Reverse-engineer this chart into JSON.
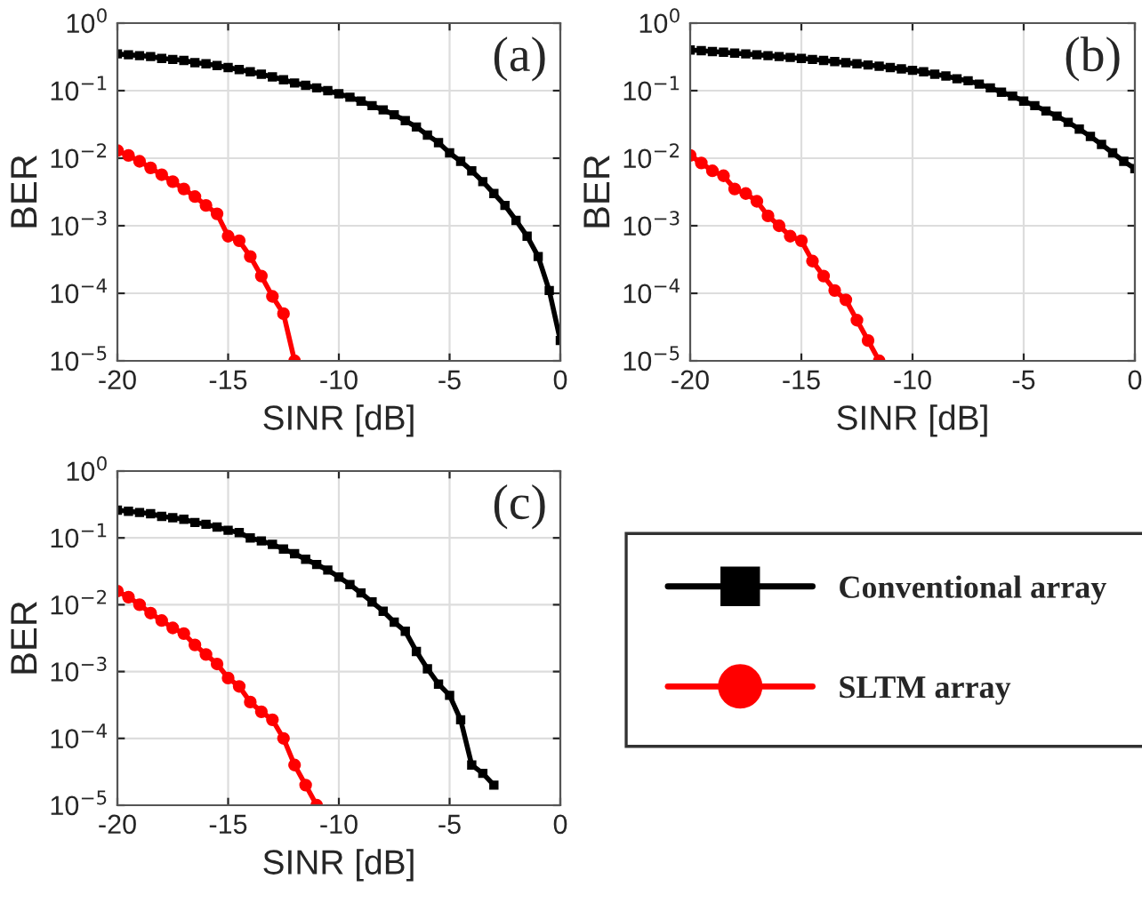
{
  "chart_data": [
    {
      "type": "line",
      "xlabel": "SINR [dB]",
      "ylabel": "BER",
      "annotations": [
        "(a)"
      ],
      "log": "y",
      "grid": true,
      "xlim": [
        -20,
        0
      ],
      "xticks": [
        -20,
        -15,
        -10,
        -5,
        0
      ],
      "ylim": [
        1e-05,
        1
      ],
      "yticks": [
        {
          "value": 1e-05,
          "label": "10$^{−5}$"
        },
        {
          "value": 0.0001,
          "label": "10$^{−4}$"
        },
        {
          "value": 0.001,
          "label": "10$^{−3}$"
        },
        {
          "value": 0.01,
          "label": "10$^{−2}$"
        },
        {
          "value": 0.1,
          "label": "10$^{−1}$"
        },
        {
          "value": 1,
          "label": "10$^{0}$"
        }
      ],
      "series": [
        {
          "color": "#000000",
          "marker": "square",
          "x": [
            -20,
            -19.5,
            -19,
            -18.5,
            -18,
            -17.5,
            -17,
            -16.5,
            -16,
            -15.5,
            -15,
            -14.5,
            -14,
            -13.5,
            -13,
            -12.5,
            -12,
            -11.5,
            -11,
            -10.5,
            -10,
            -9.5,
            -9,
            -8.5,
            -8,
            -7.5,
            -7,
            -6.5,
            -6,
            -5.5,
            -5,
            -4.5,
            -4,
            -3.5,
            -3,
            -2.5,
            -2,
            -1.5,
            -1,
            -0.5,
            0
          ],
          "values": [
            0.35,
            0.34,
            0.33,
            0.32,
            0.3,
            0.29,
            0.28,
            0.26,
            0.25,
            0.235,
            0.22,
            0.205,
            0.19,
            0.175,
            0.16,
            0.145,
            0.13,
            0.12,
            0.11,
            0.1,
            0.09,
            0.08,
            0.07,
            0.06,
            0.052,
            0.044,
            0.036,
            0.029,
            0.022,
            0.017,
            0.012,
            0.009,
            0.0065,
            0.0045,
            0.003,
            0.002,
            0.0012,
            0.0007,
            0.00035,
            0.00011,
            2e-05
          ]
        },
        {
          "color": "#ff0000",
          "marker": "circle",
          "x": [
            -20,
            -19.5,
            -19,
            -18.5,
            -18,
            -17.5,
            -17,
            -16.5,
            -16,
            -15.5,
            -15,
            -14.5,
            -14,
            -13.5,
            -13,
            -12.5,
            -12
          ],
          "values": [
            0.013,
            0.011,
            0.009,
            0.0072,
            0.0057,
            0.0045,
            0.0035,
            0.0027,
            0.002,
            0.0015,
            0.0007,
            0.0006,
            0.00035,
            0.00018,
            9e-05,
            5e-05,
            1e-05
          ]
        }
      ]
    },
    {
      "type": "line",
      "xlabel": "SINR [dB]",
      "ylabel": "BER",
      "annotations": [
        "(b)"
      ],
      "log": "y",
      "grid": true,
      "xlim": [
        -20,
        0
      ],
      "xticks": [
        -20,
        -15,
        -10,
        -5,
        0
      ],
      "ylim": [
        1e-05,
        1
      ],
      "yticks": [
        {
          "value": 1e-05,
          "label": "10$^{−5}$"
        },
        {
          "value": 0.0001,
          "label": "10$^{−4}$"
        },
        {
          "value": 0.001,
          "label": "10$^{−3}$"
        },
        {
          "value": 0.01,
          "label": "10$^{−2}$"
        },
        {
          "value": 0.1,
          "label": "10$^{−1}$"
        },
        {
          "value": 1,
          "label": "10$^{0}$"
        }
      ],
      "series": [
        {
          "color": "#000000",
          "marker": "square",
          "x": [
            -20,
            -19.5,
            -19,
            -18.5,
            -18,
            -17.5,
            -17,
            -16.5,
            -16,
            -15.5,
            -15,
            -14.5,
            -14,
            -13.5,
            -13,
            -12.5,
            -12,
            -11.5,
            -11,
            -10.5,
            -10,
            -9.5,
            -9,
            -8.5,
            -8,
            -7.5,
            -7,
            -6.5,
            -6,
            -5.5,
            -5,
            -4.5,
            -4,
            -3.5,
            -3,
            -2.5,
            -2,
            -1.5,
            -1,
            -0.5,
            0
          ],
          "values": [
            0.4,
            0.39,
            0.38,
            0.37,
            0.36,
            0.35,
            0.34,
            0.33,
            0.32,
            0.31,
            0.3,
            0.29,
            0.28,
            0.27,
            0.26,
            0.25,
            0.24,
            0.23,
            0.22,
            0.21,
            0.2,
            0.19,
            0.175,
            0.165,
            0.15,
            0.14,
            0.125,
            0.11,
            0.095,
            0.083,
            0.07,
            0.06,
            0.05,
            0.042,
            0.034,
            0.027,
            0.021,
            0.016,
            0.012,
            0.009,
            0.007
          ]
        },
        {
          "color": "#ff0000",
          "marker": "circle",
          "x": [
            -20,
            -19.5,
            -19,
            -18.5,
            -18,
            -17.5,
            -17,
            -16.5,
            -16,
            -15.5,
            -15,
            -14.5,
            -14,
            -13.5,
            -13,
            -12.5,
            -12,
            -11.5
          ],
          "values": [
            0.011,
            0.0085,
            0.0065,
            0.0055,
            0.0035,
            0.003,
            0.0023,
            0.0014,
            0.001,
            0.0007,
            0.0006,
            0.0003,
            0.00018,
            0.00011,
            8e-05,
            4e-05,
            2e-05,
            1e-05
          ]
        }
      ]
    },
    {
      "type": "line",
      "xlabel": "SINR [dB]",
      "ylabel": "BER",
      "annotations": [
        "(c)"
      ],
      "log": "y",
      "grid": true,
      "legend": "right",
      "xlim": [
        -20,
        0
      ],
      "xticks": [
        -20,
        -15,
        -10,
        -5,
        0
      ],
      "ylim": [
        1e-05,
        1
      ],
      "yticks": [
        {
          "value": 1e-05,
          "label": "10$^{−5}$"
        },
        {
          "value": 0.0001,
          "label": "10$^{−4}$"
        },
        {
          "value": 0.001,
          "label": "10$^{−3}$"
        },
        {
          "value": 0.01,
          "label": "10$^{−2}$"
        },
        {
          "value": 0.1,
          "label": "10$^{−1}$"
        },
        {
          "value": 1,
          "label": "10$^{0}$"
        }
      ],
      "series": [
        {
          "name": "Conventional array",
          "color": "#000000",
          "marker": "square",
          "x": [
            -20,
            -19.5,
            -19,
            -18.5,
            -18,
            -17.5,
            -17,
            -16.5,
            -16,
            -15.5,
            -15,
            -14.5,
            -14,
            -13.5,
            -13,
            -12.5,
            -12,
            -11.5,
            -11,
            -10.5,
            -10,
            -9.5,
            -9,
            -8.5,
            -8,
            -7.5,
            -7,
            -6.5,
            -6,
            -5.5,
            -5,
            -4.5,
            -4,
            -3.5,
            -3
          ],
          "values": [
            0.26,
            0.25,
            0.24,
            0.23,
            0.21,
            0.2,
            0.19,
            0.17,
            0.16,
            0.145,
            0.13,
            0.12,
            0.1,
            0.09,
            0.08,
            0.068,
            0.058,
            0.048,
            0.04,
            0.033,
            0.026,
            0.02,
            0.015,
            0.011,
            0.008,
            0.0055,
            0.004,
            0.002,
            0.0011,
            0.00065,
            0.00044,
            0.00019,
            4e-05,
            3e-05,
            2e-05
          ]
        },
        {
          "name": "SLTM array",
          "color": "#ff0000",
          "marker": "circle",
          "x": [
            -20,
            -19.5,
            -19,
            -18.5,
            -18,
            -17.5,
            -17,
            -16.5,
            -16,
            -15.5,
            -15,
            -14.5,
            -14,
            -13.5,
            -13,
            -12.5,
            -12,
            -11.5,
            -11
          ],
          "values": [
            0.016,
            0.013,
            0.01,
            0.0075,
            0.0058,
            0.0045,
            0.0037,
            0.0025,
            0.0018,
            0.0013,
            0.0008,
            0.0006,
            0.00035,
            0.00025,
            0.00019,
            0.0001,
            4e-05,
            2e-05,
            1e-05
          ]
        }
      ]
    }
  ]
}
